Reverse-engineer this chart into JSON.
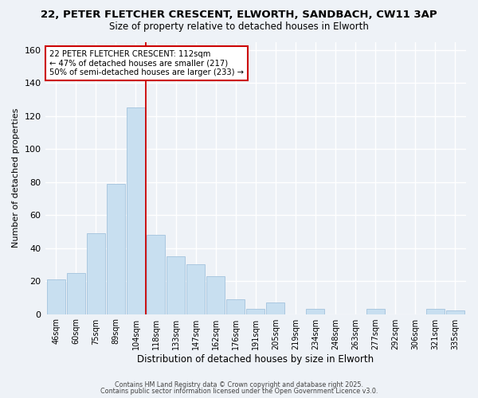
{
  "title_line1": "22, PETER FLETCHER CRESCENT, ELWORTH, SANDBACH, CW11 3AP",
  "title_line2": "Size of property relative to detached houses in Elworth",
  "xlabel": "Distribution of detached houses by size in Elworth",
  "ylabel": "Number of detached properties",
  "bar_labels": [
    "46sqm",
    "60sqm",
    "75sqm",
    "89sqm",
    "104sqm",
    "118sqm",
    "133sqm",
    "147sqm",
    "162sqm",
    "176sqm",
    "191sqm",
    "205sqm",
    "219sqm",
    "234sqm",
    "248sqm",
    "263sqm",
    "277sqm",
    "292sqm",
    "306sqm",
    "321sqm",
    "335sqm"
  ],
  "bar_values": [
    21,
    25,
    49,
    79,
    125,
    48,
    35,
    30,
    23,
    9,
    3,
    7,
    0,
    3,
    0,
    0,
    3,
    0,
    0,
    3,
    2
  ],
  "bar_color": "#c8dff0",
  "bar_edge_color": "#aac8e0",
  "ylim": [
    0,
    165
  ],
  "yticks": [
    0,
    20,
    40,
    60,
    80,
    100,
    120,
    140,
    160
  ],
  "vline_x_index": 5,
  "vline_color": "#cc0000",
  "annotation_text": "22 PETER FLETCHER CRESCENT: 112sqm\n← 47% of detached houses are smaller (217)\n50% of semi-detached houses are larger (233) →",
  "annotation_box_color": "#ffffff",
  "annotation_box_edge": "#cc0000",
  "footer_line1": "Contains HM Land Registry data © Crown copyright and database right 2025.",
  "footer_line2": "Contains public sector information licensed under the Open Government Licence v3.0.",
  "background_color": "#eef2f7",
  "grid_color": "#ffffff",
  "plot_bg": "#dce8f4"
}
